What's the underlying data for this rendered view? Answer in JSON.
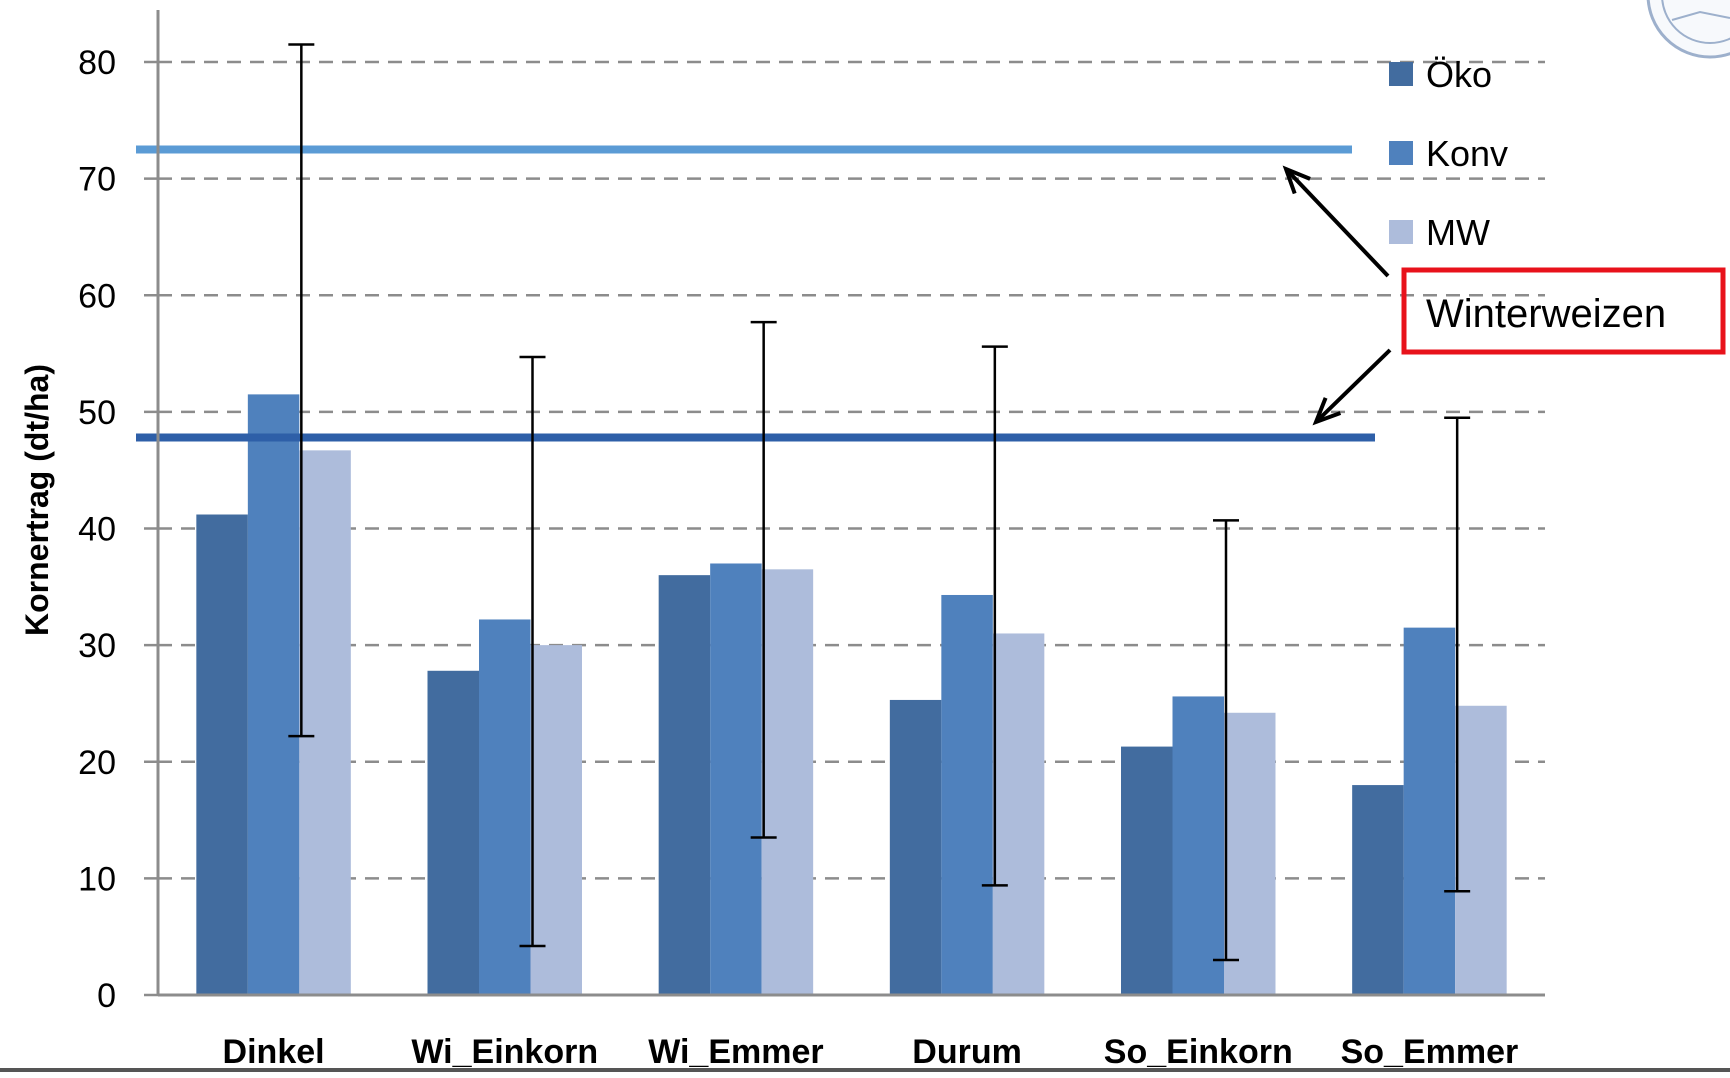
{
  "chart_data": {
    "type": "bar",
    "categories": [
      "Dinkel",
      "Wi_Einkorn",
      "Wi_Emmer",
      "Durum",
      "So_Einkorn",
      "So_Emmer"
    ],
    "series": [
      {
        "name": "Öko",
        "values": [
          41.2,
          27.8,
          36.0,
          25.3,
          21.3,
          18.0
        ],
        "color": "#426c9f"
      },
      {
        "name": "Konv",
        "values": [
          51.5,
          32.2,
          37.0,
          34.3,
          25.6,
          31.5
        ],
        "color": "#4f81bd"
      },
      {
        "name": "MW",
        "values": [
          46.7,
          30.0,
          36.5,
          31.0,
          24.2,
          24.8
        ],
        "color": "#adbcdb",
        "error_bars": [
          [
            22.2,
            81.5
          ],
          [
            4.2,
            54.7
          ],
          [
            13.5,
            57.7
          ],
          [
            9.4,
            55.6
          ],
          [
            3.0,
            40.7
          ],
          [
            8.9,
            49.5
          ]
        ]
      }
    ],
    "reference_lines": [
      {
        "value": 72.5,
        "color": "#5b9bd5"
      },
      {
        "value": 47.8,
        "color": "#2e5fa8"
      }
    ],
    "annotation": {
      "text": "Winterweizen",
      "box_color": "#e8121b"
    },
    "xlabel": "",
    "ylabel": "Kornertrag (dt/ha)",
    "ylim": [
      0,
      80
    ],
    "yticks": [
      0,
      10,
      20,
      30,
      40,
      50,
      60,
      70,
      80
    ],
    "grid": true,
    "legend_position": "right"
  }
}
